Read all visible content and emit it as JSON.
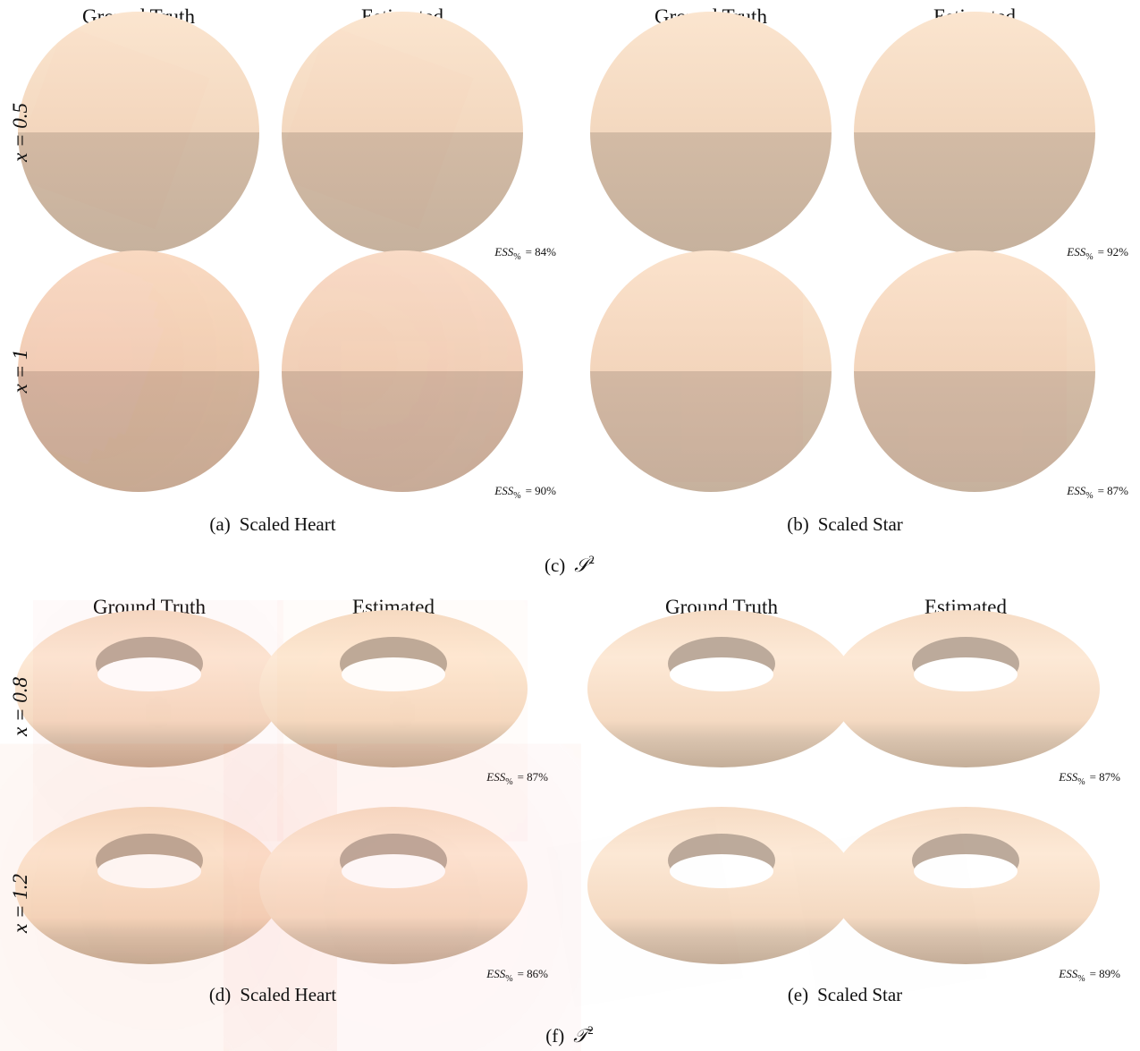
{
  "sections": [
    {
      "caption": {
        "label": "(c)",
        "symbol": "𝒮",
        "sup": "2"
      },
      "panels": [
        {
          "caption": {
            "label": "(a)",
            "text": "Scaled Heart"
          },
          "columns": [
            "Ground Truth",
            "Estimated"
          ],
          "rows": [
            {
              "label": "x = 0.5",
              "ess": {
                "name": "ESS",
                "sub": "%",
                "text": "= 84%"
              }
            },
            {
              "label": "x = 1",
              "ess": {
                "name": "ESS",
                "sub": "%",
                "text": "= 90%"
              }
            }
          ]
        },
        {
          "caption": {
            "label": "(b)",
            "text": "Scaled Star"
          },
          "columns": [
            "Ground Truth",
            "Estimated"
          ],
          "rows": [
            {
              "label": "x = 0.5",
              "ess": {
                "name": "ESS",
                "sub": "%",
                "text": "= 92%"
              }
            },
            {
              "label": "x = 1",
              "ess": {
                "name": "ESS",
                "sub": "%",
                "text": "= 87%"
              }
            }
          ]
        }
      ]
    },
    {
      "caption": {
        "label": "(f)",
        "symbol": "𝒯",
        "sup": "2"
      },
      "panels": [
        {
          "caption": {
            "label": "(d)",
            "text": "Scaled Heart"
          },
          "columns": [
            "Ground Truth",
            "Estimated"
          ],
          "rows": [
            {
              "label": "x = 0.8",
              "ess": {
                "name": "ESS",
                "sub": "%",
                "text": "= 87%"
              }
            },
            {
              "label": "x = 1.2",
              "ess": {
                "name": "ESS",
                "sub": "%",
                "text": "= 86%"
              }
            }
          ]
        },
        {
          "caption": {
            "label": "(e)",
            "text": "Scaled Star"
          },
          "columns": [
            "Ground Truth",
            "Estimated"
          ],
          "rows": [
            {
              "label": "x = 0.8",
              "ess": {
                "name": "ESS",
                "sub": "%",
                "text": "= 87%"
              }
            },
            {
              "label": "x = 1.2",
              "ess": {
                "name": "ESS",
                "sub": "%",
                "text": "= 89%"
              }
            }
          ]
        }
      ]
    }
  ]
}
